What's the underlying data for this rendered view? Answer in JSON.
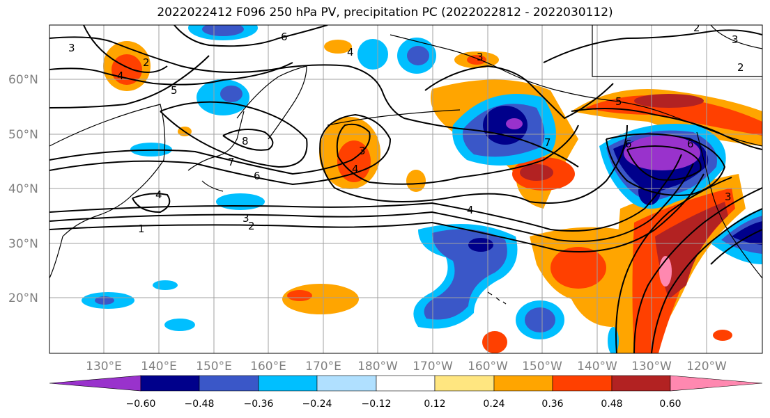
{
  "title": "2022022412 F096 250 hPa PV, precipitation PC (2022022812 - 2022030112)",
  "lat_labels": [
    "60°N",
    "50°N",
    "40°N",
    "30°N",
    "20°N"
  ],
  "lon_labels": [
    "130°E",
    "140°E",
    "150°E",
    "160°E",
    "170°E",
    "180°W",
    "170°W",
    "160°W",
    "150°W",
    "140°W",
    "130°W",
    "120°W"
  ],
  "contour_labels": [
    "3",
    "2",
    "4",
    "5",
    "6",
    "4",
    "3",
    "8",
    "7",
    "6",
    "3",
    "4",
    "4",
    "3",
    "2",
    "1",
    "6",
    "7",
    "5",
    "6",
    "4",
    "3",
    "3",
    "2",
    "2"
  ],
  "colorbar": {
    "ticks": [
      "−0.60",
      "−0.48",
      "−0.36",
      "−0.24",
      "−0.12",
      "0.12",
      "0.24",
      "0.36",
      "0.48",
      "0.60"
    ],
    "colors": [
      "#9932cc",
      "#00008b",
      "#3a57c8",
      "#00bfff",
      "#b0e0ff",
      "#ffffff",
      "#ffe680",
      "#ffa500",
      "#ff4000",
      "#b22222",
      "#ff88b0"
    ]
  },
  "palette": {
    "pos1": "#ffe680",
    "pos2": "#ffa500",
    "pos3": "#ff4000",
    "pos4": "#b22222",
    "pos5": "#ff88b0",
    "neg1": "#00bfff",
    "neg2": "#3a57c8",
    "neg3": "#00008b",
    "neg4": "#9932cc"
  }
}
